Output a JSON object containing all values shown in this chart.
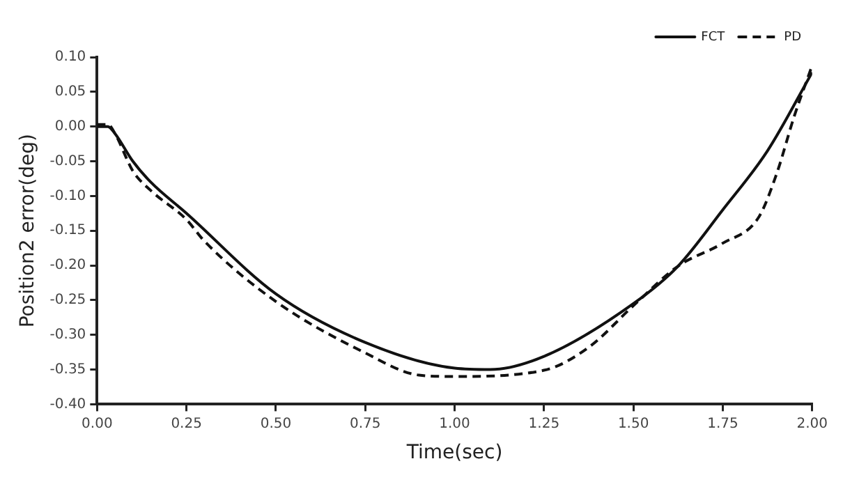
{
  "chart_data": {
    "type": "line",
    "xlabel": "Time(sec)",
    "ylabel": "Position2 error(deg)",
    "xlim": [
      0,
      2
    ],
    "xticks": [
      {
        "value": 0,
        "label": "0.00"
      },
      {
        "value": 0.25,
        "label": "0.25"
      },
      {
        "value": 0.5,
        "label": "0.50"
      },
      {
        "value": 0.75,
        "label": "0.75"
      },
      {
        "value": 1,
        "label": "1.00"
      },
      {
        "value": 1.25,
        "label": "1.25"
      },
      {
        "value": 1.5,
        "label": "1.50"
      },
      {
        "value": 1.75,
        "label": "1.75"
      },
      {
        "value": 2,
        "label": "2.00"
      }
    ],
    "ylim": [
      -0.4,
      0.1
    ],
    "yticks": [
      {
        "value": -0.4,
        "label": "-0.40"
      },
      {
        "value": -0.35,
        "label": "-0.35"
      },
      {
        "value": -0.3,
        "label": "-0.30"
      },
      {
        "value": -0.25,
        "label": "-0.25"
      },
      {
        "value": -0.2,
        "label": "-0.20"
      },
      {
        "value": -0.15,
        "label": "-0.15"
      },
      {
        "value": -0.1,
        "label": "-0.10"
      },
      {
        "value": -0.05,
        "label": "-0.05"
      },
      {
        "value": 0,
        "label": "0.00"
      },
      {
        "value": 0.05,
        "label": "0.05"
      },
      {
        "value": 0.1,
        "label": "0.10"
      }
    ],
    "grid": false,
    "legend": "top right",
    "marker": "none",
    "series": [
      {
        "name": "FCT",
        "color": "#111111",
        "line_style": "solid",
        "x": [
          0,
          0.03,
          0.05,
          0.1,
          0.15,
          0.25,
          0.5,
          0.75,
          1.0,
          1.1,
          1.25,
          1.5,
          1.625,
          1.75,
          1.875,
          2.0
        ],
        "values": [
          0,
          0,
          -0.01,
          -0.05,
          -0.08,
          -0.125,
          -0.241,
          -0.311,
          -0.348,
          -0.35,
          -0.331,
          -0.255,
          -0.201,
          -0.12,
          -0.035,
          0.078
        ]
      },
      {
        "name": "PD",
        "color": "#111111",
        "line_style": "dashed",
        "x": [
          0,
          0.03,
          0.05,
          0.1,
          0.15,
          0.25,
          0.3,
          0.5,
          0.75,
          0.9,
          1.0,
          1.25,
          1.375,
          1.5,
          1.625,
          1.75,
          1.85,
          1.9,
          1.95,
          2.0
        ],
        "values": [
          0.003,
          0.003,
          -0.01,
          -0.064,
          -0.092,
          -0.134,
          -0.165,
          -0.252,
          -0.326,
          -0.358,
          -0.36,
          -0.351,
          -0.318,
          -0.258,
          -0.201,
          -0.168,
          -0.131,
          -0.069,
          0.015,
          0.088
        ]
      }
    ]
  }
}
